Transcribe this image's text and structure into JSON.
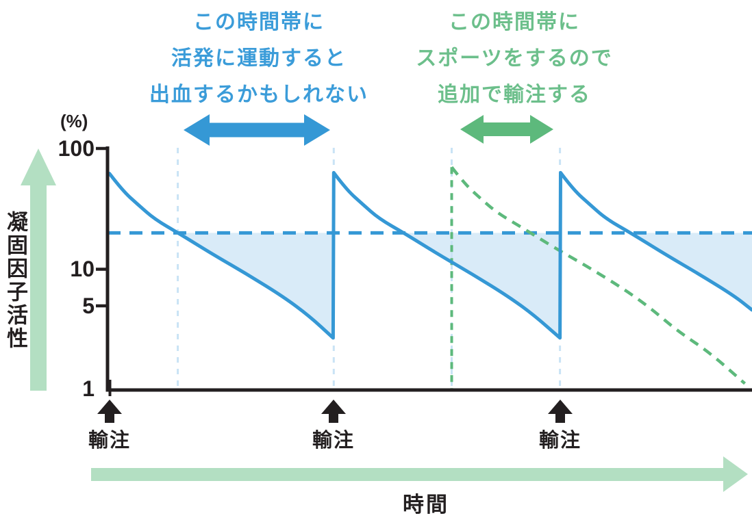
{
  "colors": {
    "blue": "#3598d5",
    "blue_text": "#3b9cd9",
    "green": "#5db97c",
    "green_text": "#6cbf8b",
    "pale_green": "#b3dfc2",
    "light_blue_fill": "#d9ebf8",
    "light_blue_dash": "#c9e3f5",
    "ink": "#231f20"
  },
  "annotations": {
    "exercise_warning": {
      "lines": [
        "この時間帯に",
        "活発に運動すると",
        "出血するかもしれない"
      ],
      "color": "#3b9cd9"
    },
    "sports_infusion": {
      "lines": [
        "この時間帯に",
        "スポーツをするので",
        "追加で輸注する"
      ],
      "color": "#6cbf8b"
    }
  },
  "labels": {
    "y_unit": "(%)",
    "y_axis_title": "凝固因子活性",
    "x_axis_title": "時間",
    "infusion": "輸注"
  },
  "chart_data": {
    "type": "line",
    "title": "",
    "y_axis": {
      "title": "凝固因子活性",
      "unit": "%",
      "scale": "log",
      "range": [
        1,
        100
      ],
      "ticks": [
        "100",
        "10",
        "5",
        "1"
      ],
      "tick_values": [
        100,
        10,
        5,
        1
      ]
    },
    "x_axis": {
      "title": "時間",
      "range": [
        0,
        100
      ],
      "ticks": []
    },
    "threshold": {
      "value": 20,
      "color": "#3598d5",
      "style": "dashed"
    },
    "infusions": {
      "label": "輸注",
      "times": [
        0.3,
        35.1,
        70.3
      ]
    },
    "series": [
      {
        "name": "coagulation-factor-activity",
        "color": "#3598d5",
        "style": "solid",
        "segments": [
          [
            [
              0.3,
              62
            ],
            [
              2.3,
              45
            ],
            [
              4.8,
              34
            ],
            [
              7.3,
              26
            ],
            [
              11.3,
              19.5
            ],
            [
              16.3,
              13.3
            ],
            [
              21.8,
              9.0
            ],
            [
              27.3,
              5.9
            ],
            [
              31.3,
              4.1
            ],
            [
              35.0,
              2.7
            ]
          ],
          [
            [
              35.1,
              63
            ],
            [
              37.1,
              45.5
            ],
            [
              39.6,
              34.5
            ],
            [
              42.1,
              26.3
            ],
            [
              46.1,
              19.8
            ],
            [
              51.1,
              13.5
            ],
            [
              56.6,
              9.1
            ],
            [
              62.1,
              6.0
            ],
            [
              66.1,
              4.2
            ],
            [
              70.2,
              2.7
            ]
          ],
          [
            [
              70.3,
              63
            ],
            [
              72.3,
              45.5
            ],
            [
              74.8,
              34.5
            ],
            [
              77.3,
              26.3
            ],
            [
              81.3,
              19.8
            ],
            [
              86.3,
              13.5
            ],
            [
              91.8,
              9.1
            ],
            [
              97.3,
              6.0
            ],
            [
              100,
              4.6
            ]
          ]
        ]
      },
      {
        "name": "additional-infusion-decay",
        "color": "#5db97c",
        "style": "dashed",
        "segments": [
          [
            [
              53.4,
              70
            ],
            [
              55.4,
              51
            ],
            [
              57.9,
              38.5
            ],
            [
              60.4,
              29.5
            ],
            [
              64.4,
              22
            ],
            [
              69.4,
              15
            ],
            [
              74.9,
              10.2
            ],
            [
              80.4,
              6.7
            ],
            [
              84.4,
              4.7
            ],
            [
              88.4,
              3.1
            ],
            [
              93.4,
              2.05
            ],
            [
              98.9,
              1.13
            ]
          ]
        ]
      }
    ],
    "guides": {
      "light_blue_vertical_times": [
        10.9,
        35.1,
        53.4,
        70.2
      ],
      "green_vertical": {
        "time": 53.4,
        "top_value": 70
      },
      "below_threshold_fill": "#d9ebf8"
    },
    "legend": null
  }
}
